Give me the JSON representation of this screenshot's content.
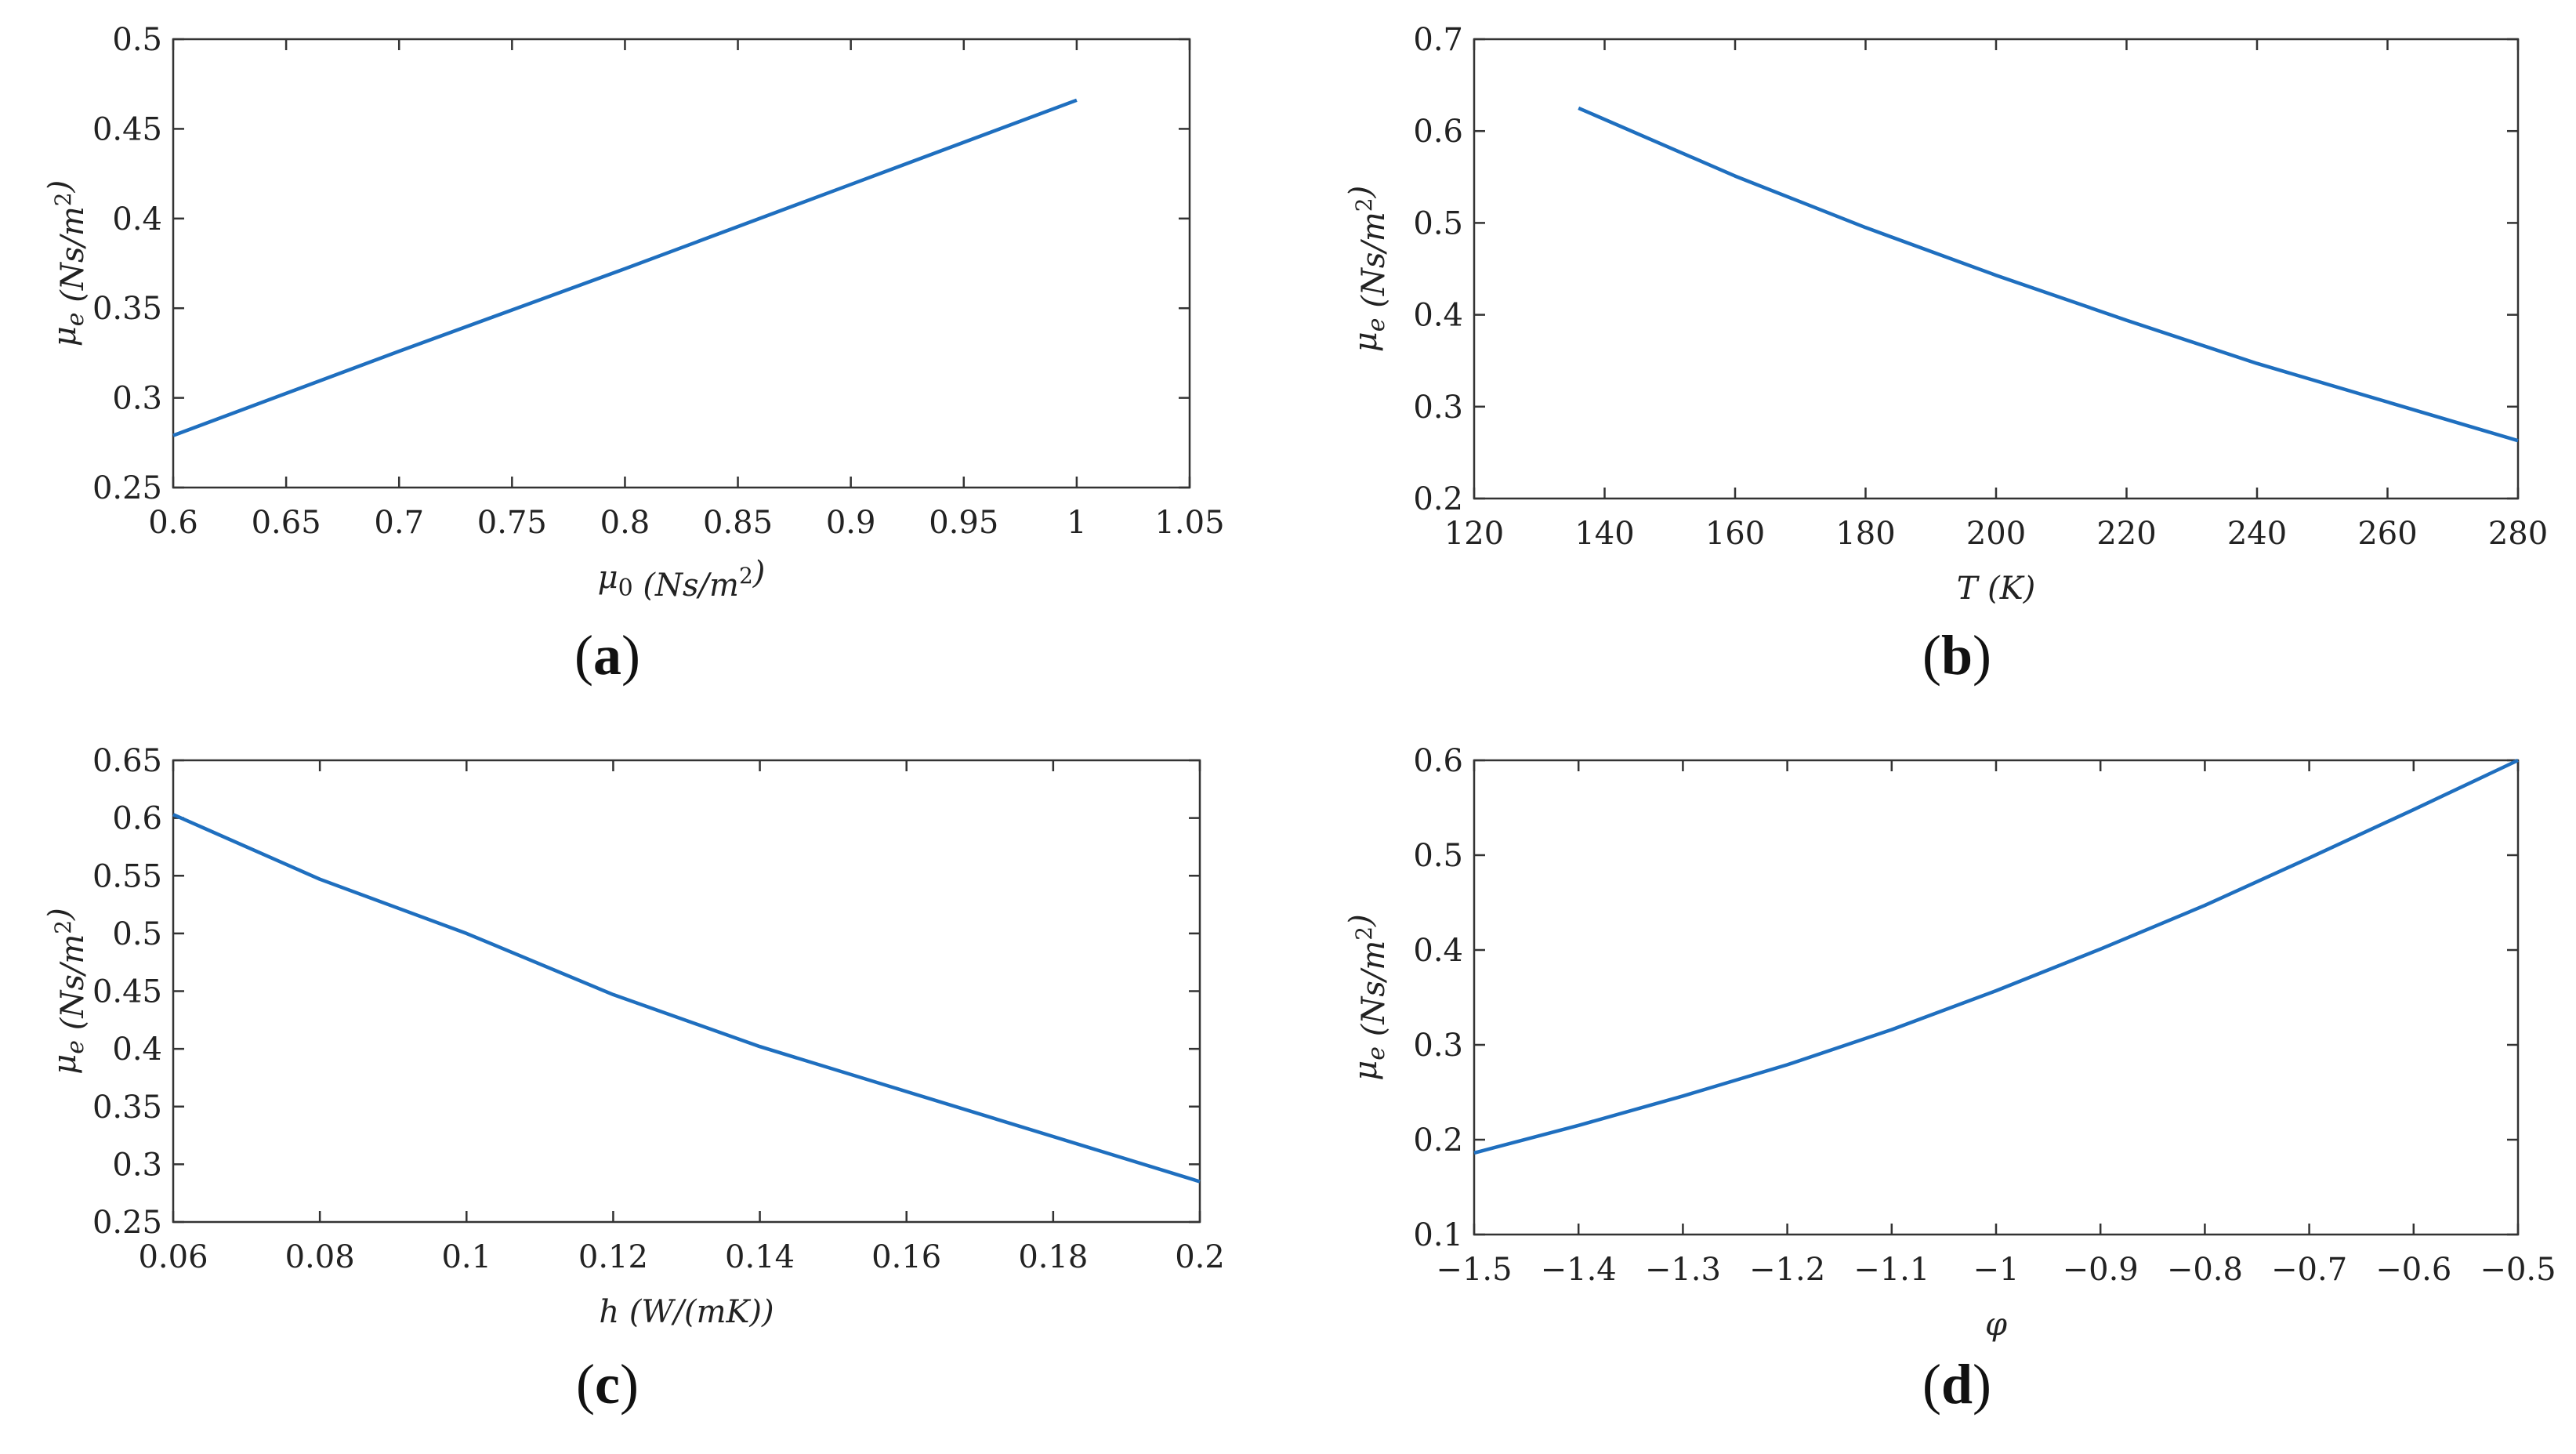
{
  "chart_data": [
    {
      "type": "line",
      "caption": "(a)",
      "xlabel": "μ0 (Ns/m²)",
      "ylabel": "μe (Ns/m²)",
      "xlim": [
        0.6,
        1.05
      ],
      "ylim": [
        0.25,
        0.5
      ],
      "xticks": [
        "0.6",
        "0.65",
        "0.7",
        "0.75",
        "0.8",
        "0.85",
        "0.9",
        "0.95",
        "1",
        "1.05"
      ],
      "yticks": [
        "0.25",
        "0.3",
        "0.35",
        "0.4",
        "0.45",
        "0.5"
      ],
      "series": [
        {
          "name": "μe",
          "x": [
            0.6,
            0.7,
            0.8,
            0.9,
            1.0
          ],
          "y": [
            0.279,
            0.326,
            0.372,
            0.419,
            0.466
          ]
        }
      ]
    },
    {
      "type": "line",
      "caption": "(b)",
      "xlabel": "T (K)",
      "ylabel": "μe (Ns/m²)",
      "xlim": [
        120,
        280
      ],
      "ylim": [
        0.2,
        0.7
      ],
      "xticks": [
        "120",
        "140",
        "160",
        "180",
        "200",
        "220",
        "240",
        "260",
        "280"
      ],
      "yticks": [
        "0.2",
        "0.3",
        "0.4",
        "0.5",
        "0.6",
        "0.7"
      ],
      "series": [
        {
          "name": "μe",
          "x": [
            136,
            160,
            180,
            200,
            220,
            240,
            260,
            280
          ],
          "y": [
            0.625,
            0.551,
            0.495,
            0.443,
            0.394,
            0.347,
            0.305,
            0.263
          ]
        }
      ]
    },
    {
      "type": "line",
      "caption": "(c)",
      "xlabel": "h (W/(mK))",
      "ylabel": "μe (Ns/m²)",
      "xlim": [
        0.06,
        0.2
      ],
      "ylim": [
        0.25,
        0.65
      ],
      "xticks": [
        "0.06",
        "0.08",
        "0.1",
        "0.12",
        "0.14",
        "0.16",
        "0.18",
        "0.2"
      ],
      "yticks": [
        "0.25",
        "0.3",
        "0.35",
        "0.4",
        "0.45",
        "0.5",
        "0.55",
        "0.6",
        "0.65"
      ],
      "series": [
        {
          "name": "μe",
          "x": [
            0.06,
            0.08,
            0.1,
            0.12,
            0.14,
            0.16,
            0.18,
            0.2
          ],
          "y": [
            0.603,
            0.547,
            0.5,
            0.447,
            0.402,
            0.363,
            0.324,
            0.285
          ]
        }
      ]
    },
    {
      "type": "line",
      "caption": "(d)",
      "xlabel": "φ",
      "ylabel": "μe (Ns/m²)",
      "xlim": [
        -1.5,
        -0.5
      ],
      "ylim": [
        0.1,
        0.6
      ],
      "xticks": [
        "−1.5",
        "−1.4",
        "−1.3",
        "−1.2",
        "−1.1",
        "−1",
        "−0.9",
        "−0.8",
        "−0.7",
        "−0.6",
        "−0.5"
      ],
      "yticks": [
        "0.1",
        "0.2",
        "0.3",
        "0.4",
        "0.5",
        "0.6"
      ],
      "series": [
        {
          "name": "μe",
          "x": [
            -1.5,
            -1.4,
            -1.3,
            -1.2,
            -1.1,
            -1.0,
            -0.9,
            -0.8,
            -0.7,
            -0.6,
            -0.5
          ],
          "y": [
            0.186,
            0.215,
            0.246,
            0.279,
            0.316,
            0.357,
            0.401,
            0.447,
            0.497,
            0.548,
            0.6
          ]
        }
      ]
    }
  ]
}
